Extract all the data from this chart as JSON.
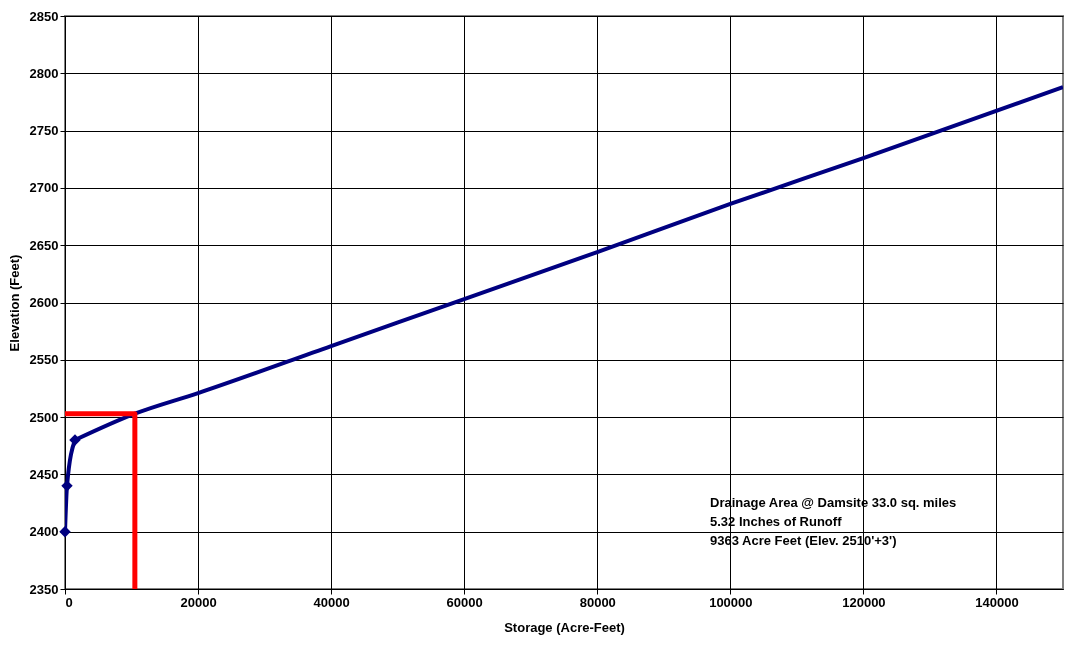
{
  "chart_data": {
    "type": "line",
    "xlabel": "Storage (Acre-Feet)",
    "ylabel": "Elevation (Feet)",
    "xlim": [
      0,
      150000
    ],
    "xticks": [
      0,
      20000,
      40000,
      60000,
      80000,
      100000,
      120000,
      140000
    ],
    "ylim": [
      2350,
      2850
    ],
    "yticks": [
      2350,
      2400,
      2450,
      2500,
      2550,
      2600,
      2650,
      2700,
      2750,
      2800,
      2850
    ],
    "grid": true,
    "line_style": "solid",
    "series": [
      {
        "color": "#000080",
        "marker": "diamond",
        "x": [
          0,
          300,
          1500
        ],
        "values": [
          2400,
          2440,
          2480
        ]
      },
      {
        "color": "#000080",
        "marker": "none",
        "x": [
          1500,
          10500,
          20000,
          40000,
          60000,
          80000,
          100000,
          120000,
          150000
        ],
        "values": [
          2480,
          2503,
          2521,
          2562,
          2603,
          2644,
          2686,
          2726,
          2788
        ]
      },
      {
        "color": "#ff0000",
        "marker": "none",
        "x": [
          0,
          10500,
          10500
        ],
        "values": [
          2503,
          2503,
          2350
        ]
      }
    ],
    "annotations": [
      "Drainage Area @ Damsite 33.0 sq. miles",
      "5.32 Inches of Runoff",
      "9363 Acre Feet (Elev. 2510'+3')"
    ]
  }
}
